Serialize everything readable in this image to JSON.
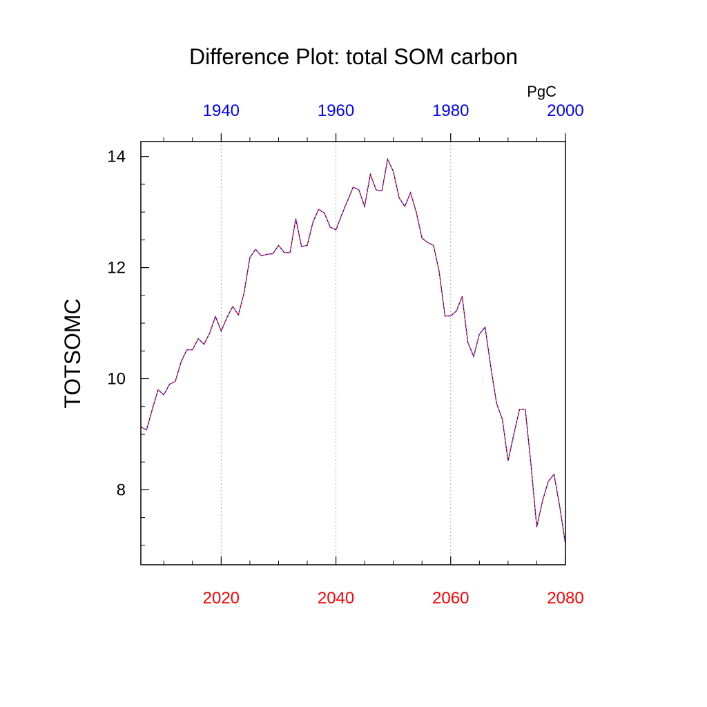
{
  "chart_data": {
    "type": "line",
    "title": "Difference Plot: total SOM carbon",
    "ylabel": "TOTSOMC",
    "units": "PgC",
    "xlim": [
      2006,
      2080
    ],
    "ylim": [
      6.65,
      14.27
    ],
    "top_xlim": [
      1926,
      2000
    ],
    "x_ticks": [
      2020,
      2040,
      2060,
      2080
    ],
    "x_tick_labels": [
      "2020",
      "2040",
      "2060",
      "2080"
    ],
    "top_ticks": [
      1940,
      1960,
      1980,
      2000
    ],
    "top_tick_labels": [
      "1940",
      "1960",
      "1980",
      "2000"
    ],
    "y_ticks": [
      8,
      10,
      12,
      14
    ],
    "y_tick_labels": [
      "8",
      "10",
      "12",
      "14"
    ],
    "grid_x": [
      2020,
      2040,
      2060
    ],
    "colors": {
      "bottom_axis": "#ff0000",
      "top_axis": "#0000ff",
      "series_a": "#ff0000",
      "series_b": "#0000ff"
    },
    "series": [
      {
        "x": [
          2006,
          2007,
          2008,
          2009,
          2010,
          2011,
          2012,
          2013,
          2014,
          2015,
          2016,
          2017,
          2018,
          2019,
          2020,
          2021,
          2022,
          2023,
          2024,
          2025,
          2026,
          2027,
          2028,
          2029,
          2030,
          2031,
          2032,
          2033,
          2034,
          2035,
          2036,
          2037,
          2038,
          2039,
          2040,
          2041,
          2042,
          2043,
          2044,
          2045,
          2046,
          2047,
          2048,
          2049,
          2050,
          2051,
          2052,
          2053,
          2054,
          2055,
          2056,
          2057,
          2058,
          2059,
          2060,
          2061,
          2062,
          2063,
          2064,
          2065,
          2066,
          2067,
          2068,
          2069,
          2070,
          2071,
          2072,
          2073,
          2074,
          2075,
          2076,
          2077,
          2078,
          2079,
          2080
        ],
        "values": [
          9.13,
          9.08,
          9.45,
          9.8,
          9.71,
          9.9,
          9.95,
          10.3,
          10.52,
          10.52,
          10.72,
          10.62,
          10.82,
          11.12,
          10.86,
          11.1,
          11.3,
          11.15,
          11.55,
          12.18,
          12.33,
          12.21,
          12.24,
          12.25,
          12.4,
          12.27,
          12.27,
          12.88,
          12.38,
          12.4,
          12.82,
          13.05,
          12.98,
          12.73,
          12.68,
          12.95,
          13.2,
          13.45,
          13.4,
          13.1,
          13.68,
          13.4,
          13.38,
          13.95,
          13.73,
          13.26,
          13.1,
          13.35,
          13.0,
          12.53,
          12.45,
          12.4,
          11.92,
          11.13,
          11.13,
          11.22,
          11.48,
          10.65,
          10.4,
          10.8,
          10.93,
          10.2,
          9.55,
          9.27,
          8.52,
          9.0,
          9.45,
          9.45,
          8.45,
          7.33,
          7.8,
          8.15,
          8.28,
          7.7,
          7.02
        ]
      },
      {
        "x": [
          2006,
          2007,
          2008,
          2009,
          2010,
          2011,
          2012,
          2013,
          2014,
          2015,
          2016,
          2017,
          2018,
          2019,
          2020,
          2021,
          2022,
          2023,
          2024,
          2025,
          2026,
          2027,
          2028,
          2029,
          2030,
          2031,
          2032,
          2033,
          2034,
          2035,
          2036,
          2037,
          2038,
          2039,
          2040,
          2041,
          2042,
          2043,
          2044,
          2045,
          2046,
          2047,
          2048,
          2049,
          2050,
          2051,
          2052,
          2053,
          2054,
          2055,
          2056,
          2057,
          2058,
          2059,
          2060,
          2061,
          2062,
          2063,
          2064,
          2065,
          2066,
          2067,
          2068,
          2069,
          2070,
          2071,
          2072,
          2073,
          2074,
          2075,
          2076,
          2077,
          2078,
          2079,
          2080
        ],
        "values": [
          9.13,
          9.08,
          9.45,
          9.8,
          9.71,
          9.9,
          9.95,
          10.3,
          10.52,
          10.52,
          10.72,
          10.62,
          10.82,
          11.12,
          10.86,
          11.1,
          11.3,
          11.15,
          11.55,
          12.18,
          12.33,
          12.21,
          12.24,
          12.25,
          12.4,
          12.27,
          12.27,
          12.88,
          12.38,
          12.4,
          12.82,
          13.05,
          12.98,
          12.73,
          12.68,
          12.95,
          13.2,
          13.45,
          13.4,
          13.1,
          13.68,
          13.4,
          13.38,
          13.95,
          13.73,
          13.26,
          13.1,
          13.35,
          13.0,
          12.53,
          12.45,
          12.4,
          11.92,
          11.13,
          11.13,
          11.22,
          11.48,
          10.65,
          10.4,
          10.8,
          10.93,
          10.2,
          9.55,
          9.27,
          8.52,
          9.0,
          9.45,
          9.45,
          8.45,
          7.33,
          7.8,
          8.15,
          8.28,
          7.7,
          7.02
        ]
      }
    ]
  }
}
